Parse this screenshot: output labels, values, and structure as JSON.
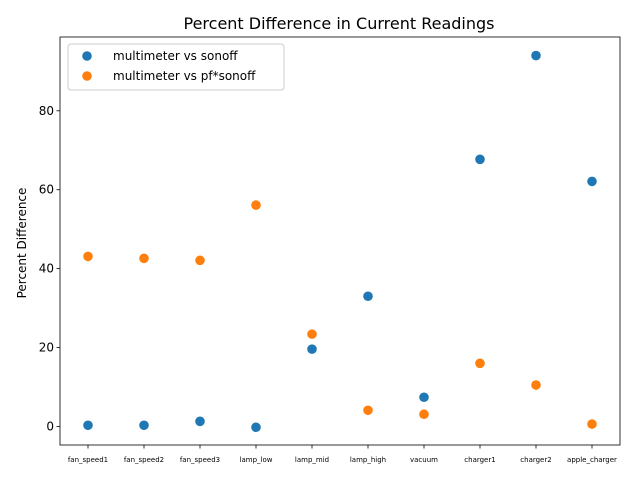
{
  "chart_data": {
    "type": "scatter",
    "title": "Percent Difference in Current Readings",
    "xlabel": "",
    "ylabel": "Percent Difference",
    "categories": [
      "fan_speed1",
      "fan_speed2",
      "fan_speed3",
      "lamp_low",
      "lamp_mid",
      "lamp_high",
      "vacuum",
      "charger1",
      "charger2",
      "apple_charger"
    ],
    "series": [
      {
        "name": "multimeter vs sonoff",
        "color": "#1f77b4",
        "values": [
          0.3,
          0.3,
          1.3,
          -0.2,
          19.6,
          33.0,
          7.4,
          67.7,
          94.0,
          62.1
        ]
      },
      {
        "name": "multimeter vs pf*sonoff",
        "color": "#ff7f0e",
        "values": [
          43.1,
          42.6,
          42.1,
          56.1,
          23.4,
          4.1,
          3.1,
          16.0,
          10.5,
          0.6
        ]
      }
    ],
    "ylim": [
      -4.7,
      98.7
    ],
    "yticks": [
      0,
      20,
      40,
      60,
      80
    ],
    "legend_position": "top-left",
    "grid": false
  }
}
